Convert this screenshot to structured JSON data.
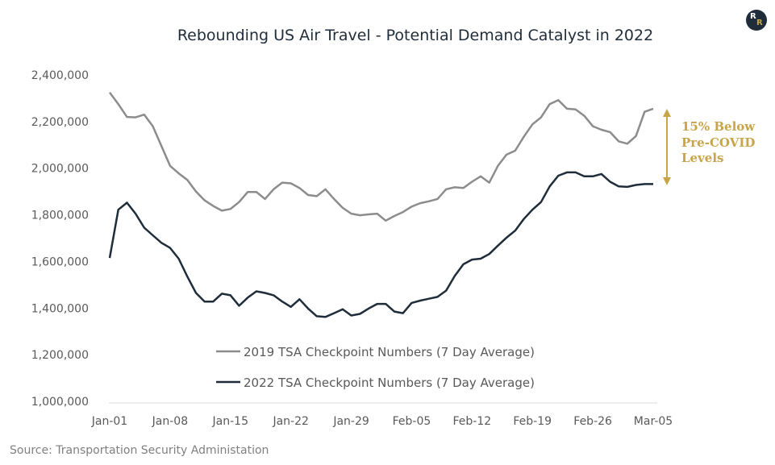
{
  "brand": {
    "logo_letters": [
      "R",
      "R"
    ],
    "accent_color": "#c9a54a",
    "dark_color": "#1f2d3a"
  },
  "source": "Source: Transportation Security Administation",
  "annotation": {
    "lines": [
      "15% Below",
      "Pre-COVID",
      "Levels"
    ],
    "color": "#c9a54a"
  },
  "chart_data": {
    "type": "line",
    "title": "Rebounding US Air Travel - Potential Demand Catalyst in 2022",
    "xlabel": "",
    "ylabel": "",
    "x_tick_labels": [
      "Jan-01",
      "Jan-08",
      "Jan-15",
      "Jan-22",
      "Jan-29",
      "Feb-05",
      "Feb-12",
      "Feb-19",
      "Feb-26",
      "Mar-05"
    ],
    "y_tick_labels": [
      "1,000,000",
      "1,200,000",
      "1,400,000",
      "1,600,000",
      "1,800,000",
      "2,000,000",
      "2,200,000",
      "2,400,000"
    ],
    "ylim": [
      1000000,
      2400000
    ],
    "grid": false,
    "legend_position": "bottom-center",
    "series": [
      {
        "name": "2019 TSA Checkpoint Numbers (7 Day Average)",
        "color": "#8c8c8c",
        "values": [
          2325000,
          2275000,
          2220000,
          2218000,
          2230000,
          2180000,
          2095000,
          2010000,
          1978000,
          1950000,
          1900000,
          1862000,
          1838000,
          1818000,
          1825000,
          1855000,
          1898000,
          1898000,
          1868000,
          1910000,
          1938000,
          1935000,
          1915000,
          1885000,
          1880000,
          1910000,
          1868000,
          1830000,
          1805000,
          1798000,
          1802000,
          1805000,
          1775000,
          1795000,
          1812000,
          1835000,
          1850000,
          1858000,
          1868000,
          1910000,
          1918000,
          1915000,
          1942000,
          1965000,
          1938000,
          2010000,
          2058000,
          2075000,
          2135000,
          2188000,
          2218000,
          2275000,
          2292000,
          2255000,
          2252000,
          2225000,
          2180000,
          2165000,
          2155000,
          2115000,
          2105000,
          2138000,
          2242000,
          2255000
        ]
      },
      {
        "name": "2022 TSA Checkpoint Numbers (7 Day Average)",
        "color": "#1f2d3a",
        "values": [
          1615000,
          1822000,
          1852000,
          1805000,
          1745000,
          1712000,
          1680000,
          1658000,
          1612000,
          1535000,
          1465000,
          1428000,
          1428000,
          1462000,
          1455000,
          1410000,
          1445000,
          1472000,
          1465000,
          1455000,
          1428000,
          1405000,
          1438000,
          1398000,
          1365000,
          1362000,
          1378000,
          1395000,
          1368000,
          1375000,
          1398000,
          1418000,
          1418000,
          1385000,
          1378000,
          1422000,
          1432000,
          1440000,
          1448000,
          1475000,
          1538000,
          1588000,
          1608000,
          1612000,
          1632000,
          1668000,
          1702000,
          1732000,
          1782000,
          1822000,
          1855000,
          1922000,
          1968000,
          1982000,
          1982000,
          1965000,
          1965000,
          1975000,
          1942000,
          1922000,
          1920000,
          1928000,
          1932000,
          1932000
        ]
      }
    ]
  }
}
